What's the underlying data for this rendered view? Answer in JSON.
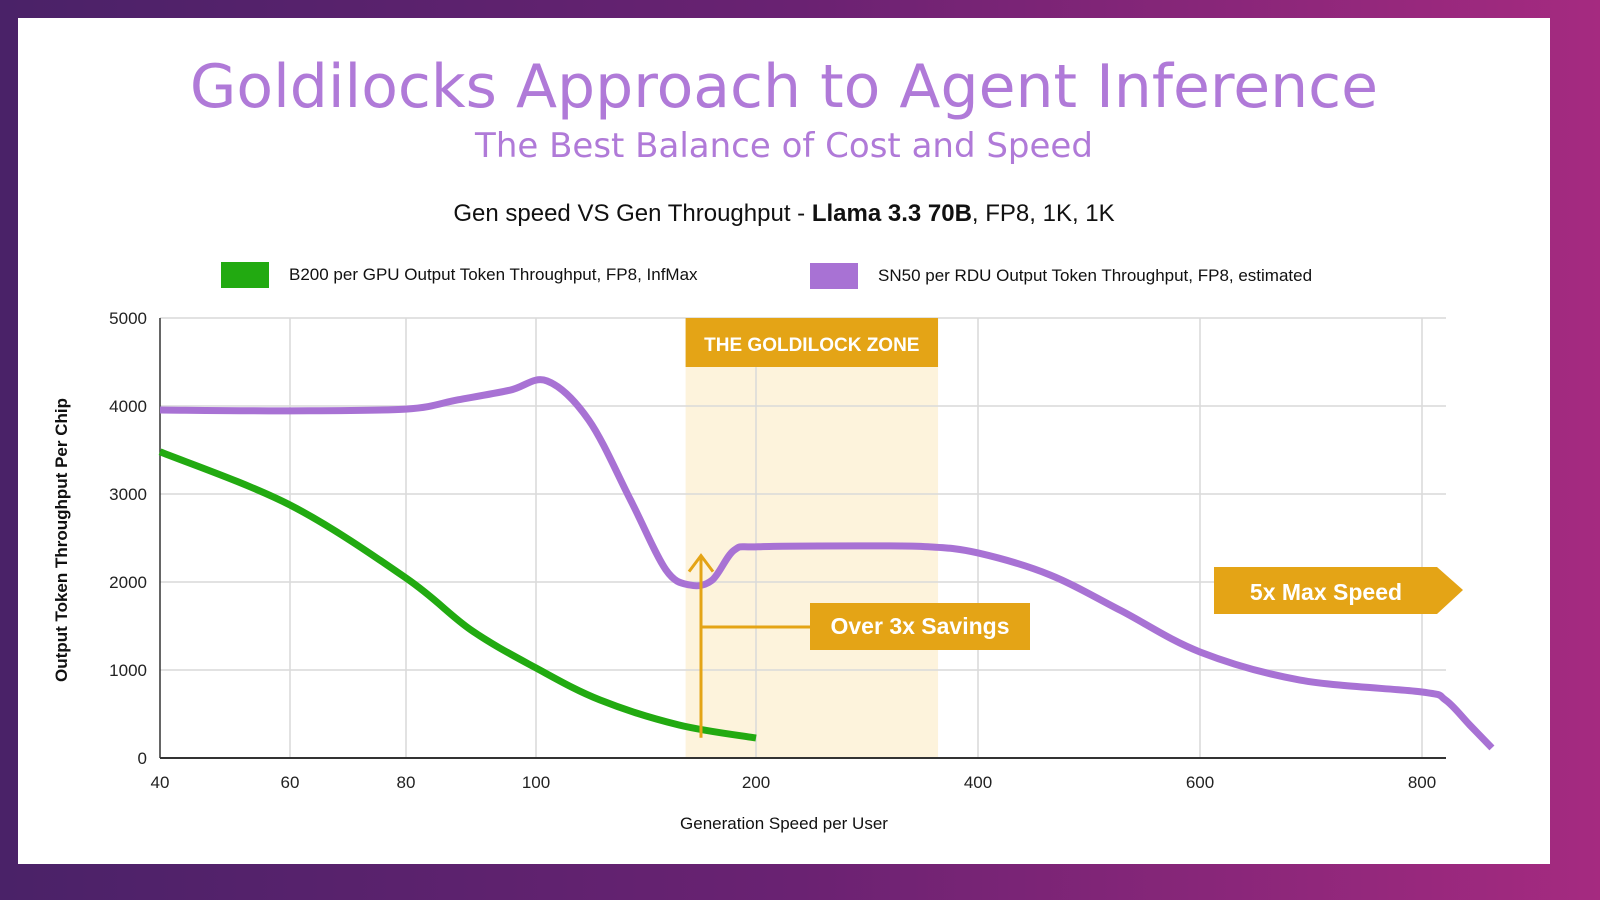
{
  "header": {
    "title": "Goldilocks Approach to Agent Inference",
    "subtitle": "The Best Balance of Cost and Speed"
  },
  "colors": {
    "accent": "#b07ad8",
    "green": "#22aa11",
    "purple": "#a872d4",
    "gold": "#e4a416",
    "zone": "#fdf3dc"
  },
  "chart_data": {
    "type": "line",
    "title_prefix": "Gen speed VS Gen Throughput - ",
    "title_bold": "Llama 3.3 70B",
    "title_suffix": ", FP8, 1K, 1K",
    "xlabel": "Generation Speed per User",
    "ylabel": "Output Token Throughput Per Chip",
    "xticks": [
      40,
      60,
      80,
      100,
      200,
      400,
      600,
      800
    ],
    "yticks": [
      0,
      1000,
      2000,
      3000,
      4000,
      5000
    ],
    "ylim": [
      0,
      5000
    ],
    "x_scale": "non-uniform (categorical tick spacing)",
    "grid": true,
    "legend_position": "top",
    "series": [
      {
        "name": "B200 per GPU Output Token Throughput, FP8, InfMax",
        "color": "#22aa11",
        "points": [
          [
            40,
            3480
          ],
          [
            60,
            2875
          ],
          [
            80,
            2045
          ],
          [
            90,
            1455
          ],
          [
            100,
            1023
          ],
          [
            129,
            660
          ],
          [
            165,
            375
          ],
          [
            200,
            227
          ]
        ]
      },
      {
        "name": "SN50 per RDU Output Token Throughput, FP8, estimated",
        "color": "#a872d4",
        "points": [
          [
            40,
            3955
          ],
          [
            60,
            3945
          ],
          [
            80,
            3965
          ],
          [
            88,
            4070
          ],
          [
            96,
            4180
          ],
          [
            105,
            4285
          ],
          [
            124,
            3840
          ],
          [
            143,
            2930
          ],
          [
            159,
            2140
          ],
          [
            170,
            1966
          ],
          [
            180,
            2020
          ],
          [
            190,
            2360
          ],
          [
            202,
            2400
          ],
          [
            292,
            2410
          ],
          [
            355,
            2400
          ],
          [
            400,
            2330
          ],
          [
            465,
            2080
          ],
          [
            528,
            1680
          ],
          [
            600,
            1205
          ],
          [
            690,
            886
          ],
          [
            800,
            750
          ],
          [
            821,
            660
          ],
          [
            843,
            375
          ],
          [
            863,
            115
          ]
        ]
      }
    ],
    "annotations": {
      "zone_label": "THE GOLDILOCK ZONE",
      "zone_range": [
        168,
        364
      ],
      "savings_label": "Over 3x Savings",
      "savings_arrow_x": 175,
      "savings_arrow_range": [
        230,
        2300
      ],
      "speed_label": "5x Max Speed"
    }
  }
}
